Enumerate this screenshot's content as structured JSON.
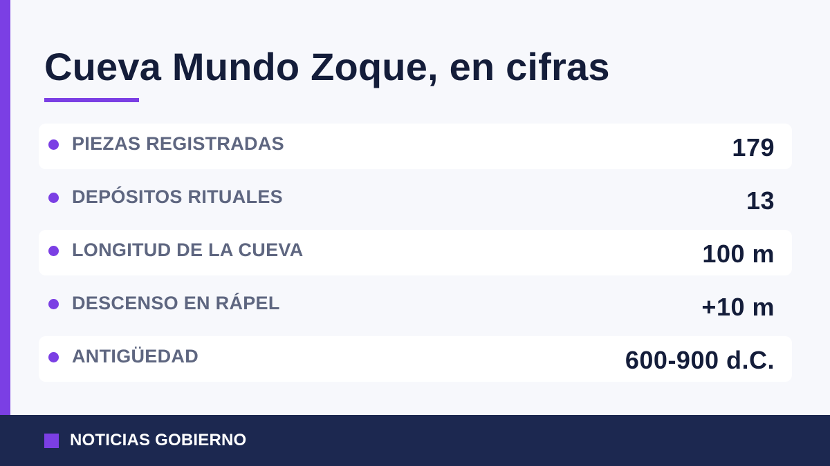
{
  "title": "Cueva Mundo Zoque, en cifras",
  "stats": [
    {
      "label": "PIEZAS REGISTRADAS",
      "value": "179"
    },
    {
      "label": "DEPÓSITOS RITUALES",
      "value": "13"
    },
    {
      "label": "LONGITUD DE LA CUEVA",
      "value": "100 m"
    },
    {
      "label": "DESCENSO EN RÁPEL",
      "value": "+10 m"
    },
    {
      "label": "ANTIGÜEDAD",
      "value": "600-900 d.C."
    }
  ],
  "footer": {
    "source": "NOTICIAS GOBIERNO"
  },
  "colors": {
    "accent": "#7b3fe4",
    "title": "#141d3a",
    "label": "#5e6680",
    "footer_bg": "#1c2850",
    "background": "#f7f8fc"
  }
}
